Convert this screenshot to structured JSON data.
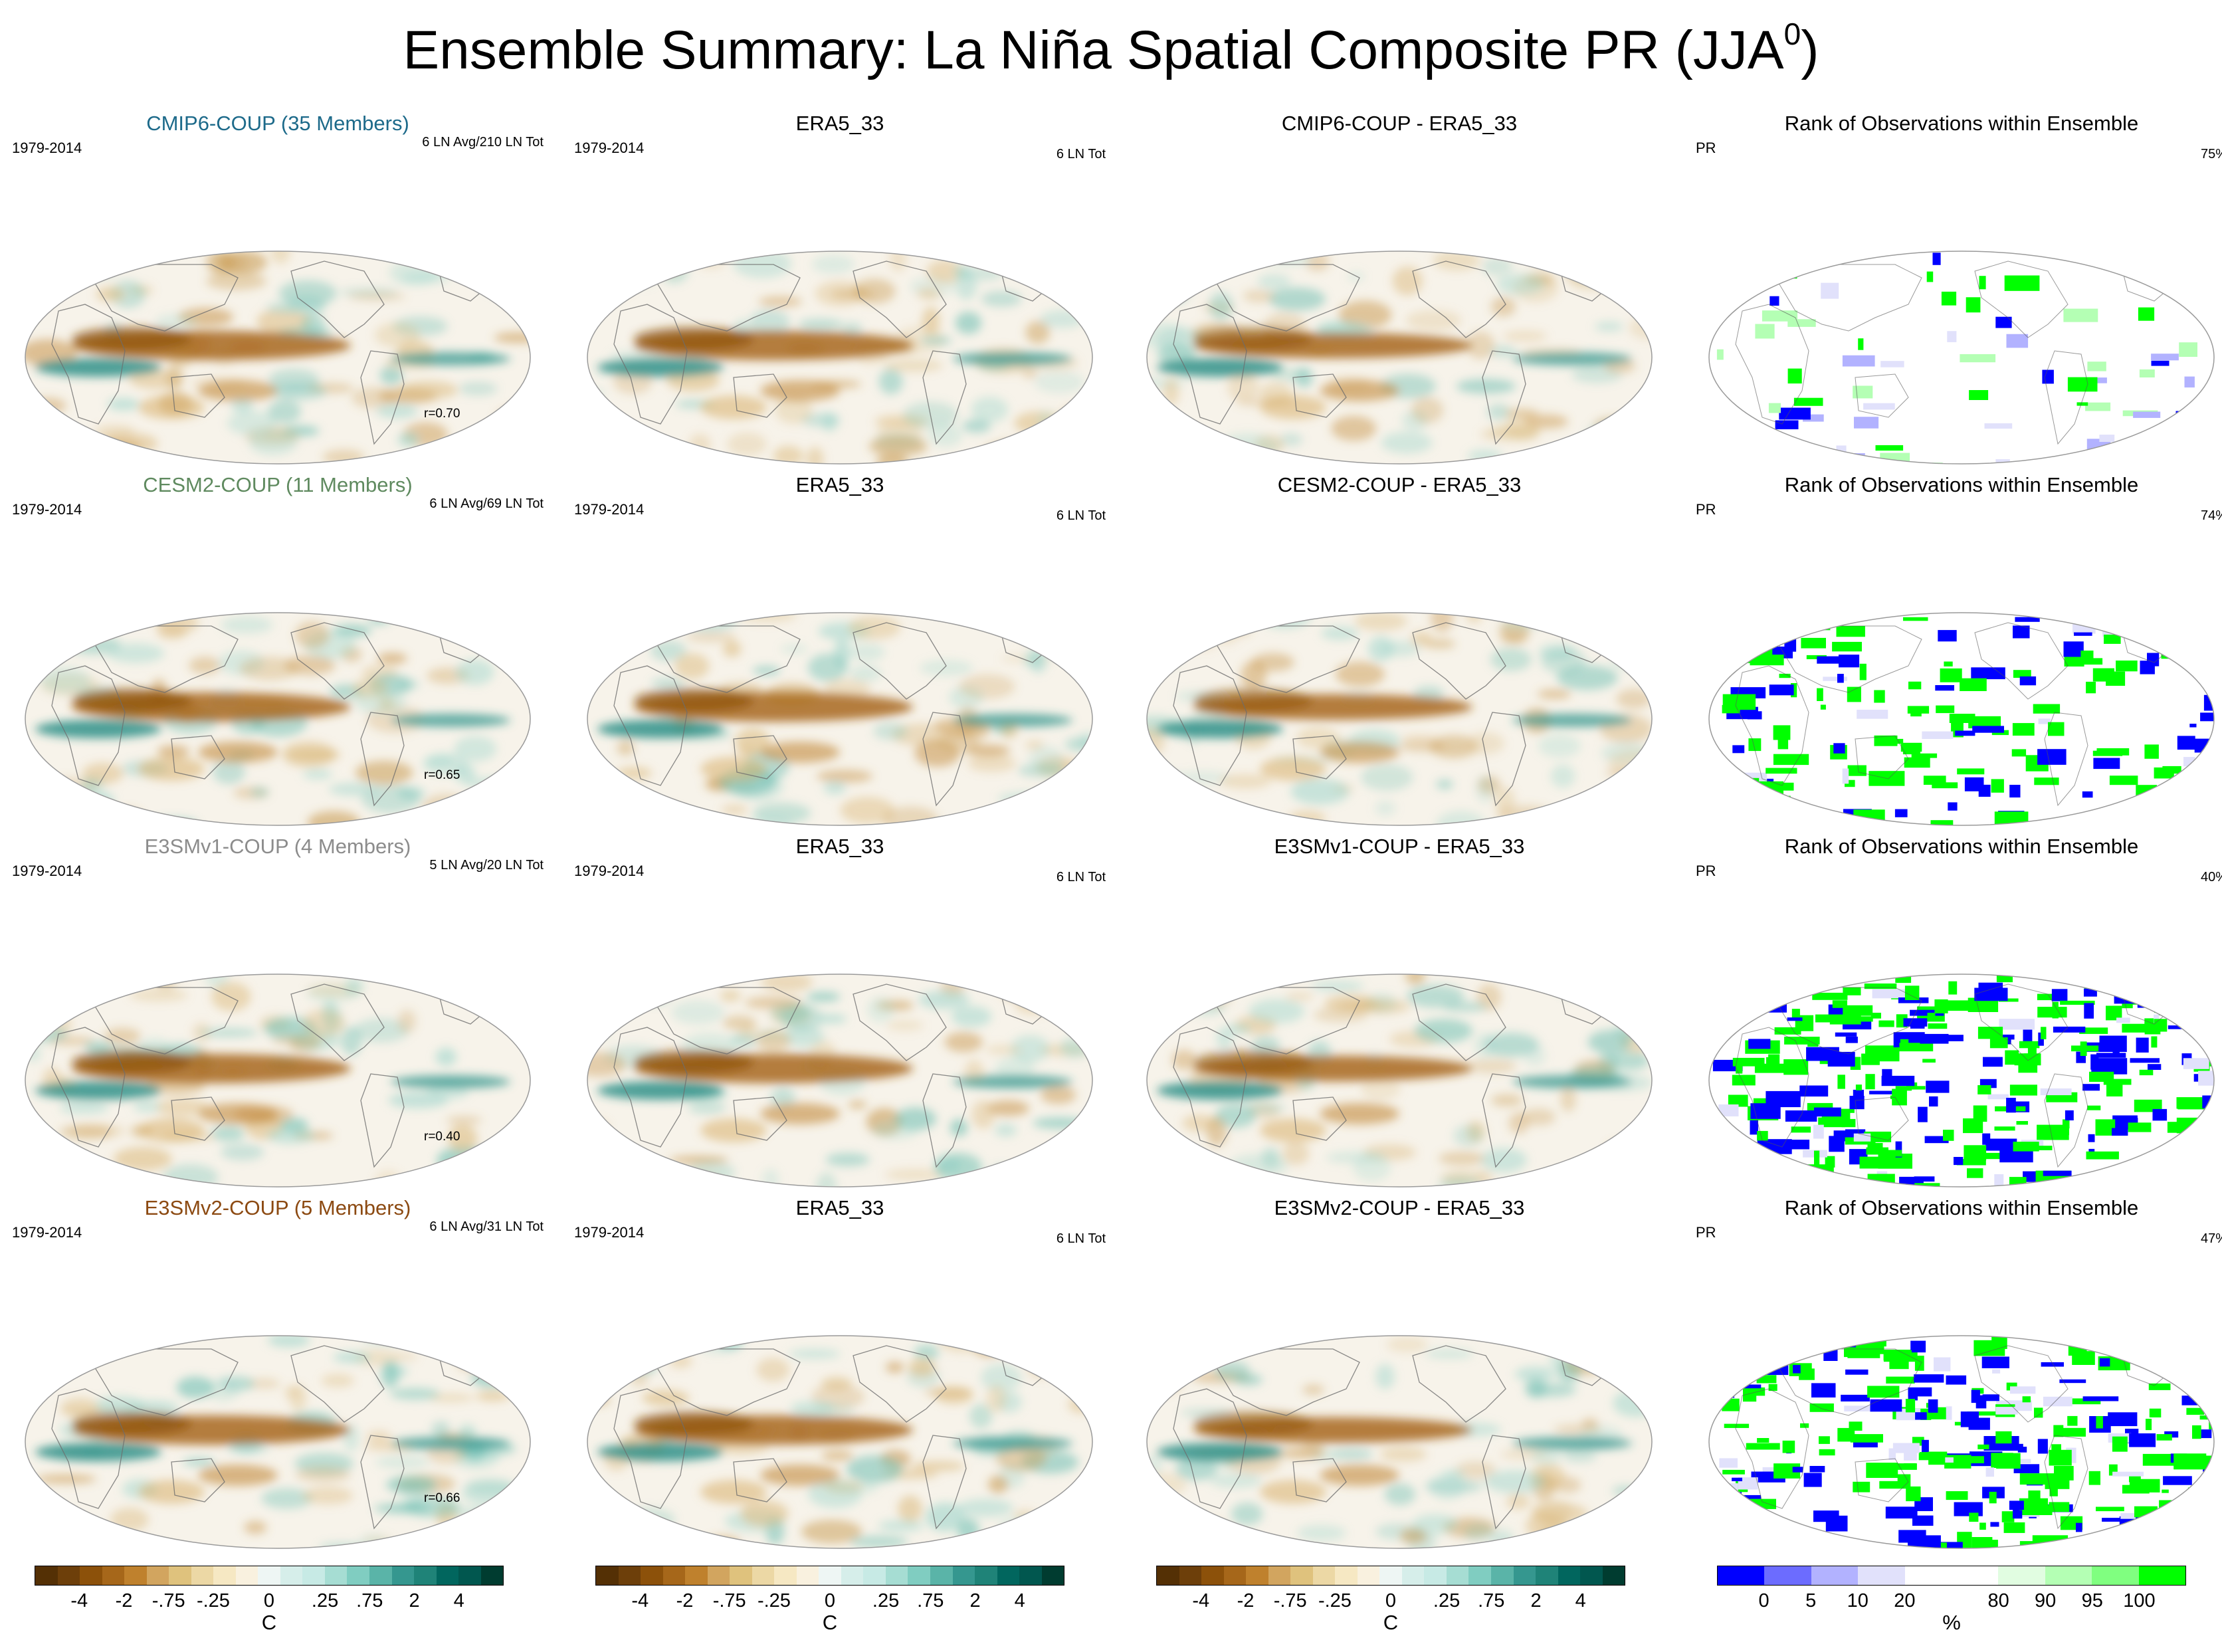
{
  "title": "Ensemble Summary: La Niña Spatial Composite PR (JJA",
  "title_sup": "0",
  "title_close": ")",
  "rows": [
    {
      "model": {
        "title": "CMIP6-COUP (35 Members)",
        "title_color": "#1d6a8a",
        "period": "1979-2014",
        "stat": "6 LN Avg/210 LN Tot",
        "r": "r=0.70"
      },
      "obs": {
        "title": "ERA5_33",
        "period": "1979-2014",
        "stat": "6 LN Tot"
      },
      "diff": {
        "title": "CMIP6-COUP - ERA5_33"
      },
      "rank": {
        "title": "Rank of Observations within Ensemble",
        "var": "PR",
        "pct": "75%"
      }
    },
    {
      "model": {
        "title": "CESM2-COUP (11 Members)",
        "title_color": "#5f8a5f",
        "period": "1979-2014",
        "stat": "6 LN Avg/69 LN Tot",
        "r": "r=0.65"
      },
      "obs": {
        "title": "ERA5_33",
        "period": "1979-2014",
        "stat": "6 LN Tot"
      },
      "diff": {
        "title": "CESM2-COUP - ERA5_33"
      },
      "rank": {
        "title": "Rank of Observations within Ensemble",
        "var": "PR",
        "pct": "74%"
      }
    },
    {
      "model": {
        "title": "E3SMv1-COUP (4 Members)",
        "title_color": "#8c8c8c",
        "period": "1979-2014",
        "stat": "5 LN Avg/20 LN Tot",
        "r": "r=0.40"
      },
      "obs": {
        "title": "ERA5_33",
        "period": "1979-2014",
        "stat": "6 LN Tot"
      },
      "diff": {
        "title": "E3SMv1-COUP - ERA5_33"
      },
      "rank": {
        "title": "Rank of Observations within Ensemble",
        "var": "PR",
        "pct": "40%"
      }
    },
    {
      "model": {
        "title": "E3SMv2-COUP (5 Members)",
        "title_color": "#8c4a12",
        "period": "1979-2014",
        "stat": "6 LN Avg/31 LN Tot",
        "r": "r=0.66"
      },
      "obs": {
        "title": "ERA5_33",
        "period": "1979-2014",
        "stat": "6 LN Tot"
      },
      "diff": {
        "title": "E3SMv2-COUP - ERA5_33"
      },
      "rank": {
        "title": "Rank of Observations within Ensemble",
        "var": "PR",
        "pct": "47%"
      }
    }
  ],
  "anomaly_colorbar": {
    "colors": [
      "#543005",
      "#6d3f0a",
      "#8c510a",
      "#a6671a",
      "#bf812d",
      "#d2a55f",
      "#dfc27d",
      "#ecd8a5",
      "#f6e8c3",
      "#f9f1df",
      "#eef6f4",
      "#d6eeea",
      "#c7eae5",
      "#a6ddd3",
      "#80cdc1",
      "#5ab4a8",
      "#35978f",
      "#1f8378",
      "#01665e",
      "#01574f",
      "#003c30"
    ],
    "tick_labels": [
      "-4",
      "-2",
      "-.75",
      "-.25",
      "0",
      ".25",
      ".75",
      "2",
      "4"
    ],
    "unit": "C"
  },
  "rank_colorbar": {
    "colors": [
      "#0000ff",
      "#6c6cff",
      "#b2b2ff",
      "#e1e1fb",
      "#ffffff",
      "#ffffff",
      "#e1fde1",
      "#b4ffb4",
      "#80ff80",
      "#00ff00"
    ],
    "tick_labels": [
      "0",
      "5",
      "10",
      "20",
      "80",
      "90",
      "95",
      "100"
    ],
    "unit": "%"
  }
}
